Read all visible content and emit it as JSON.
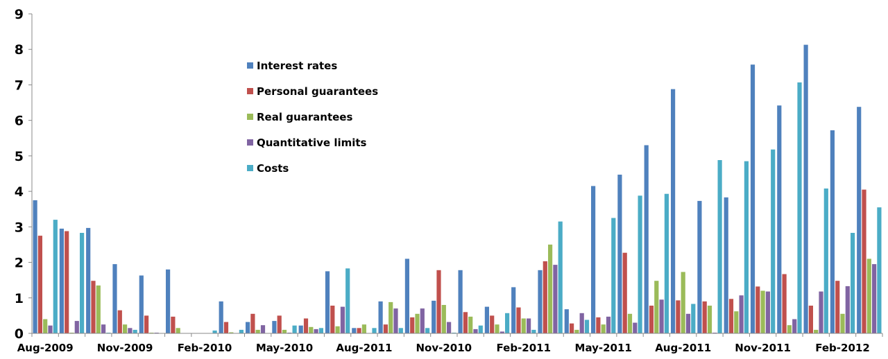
{
  "chart_data": {
    "type": "bar",
    "title": "",
    "xlabel": "",
    "ylabel": "",
    "ylim": [
      0,
      9
    ],
    "yticks": [
      0,
      1,
      2,
      3,
      4,
      5,
      6,
      7,
      8,
      9
    ],
    "grid": false,
    "legend_position": "top-center",
    "x_tick_labels": [
      "Aug-2009",
      "Nov-2009",
      "Feb-2010",
      "May-2010",
      "Aug-2011",
      "Nov-2010",
      "Feb-2011",
      "May-2011",
      "Aug-2011",
      "Nov-2011",
      "Feb-2012"
    ],
    "x_tick_every": 3,
    "series": [
      {
        "name": "Interest rates",
        "color": "#4F81BD",
        "values": [
          3.75,
          2.95,
          2.97,
          1.95,
          1.63,
          1.8,
          0,
          0.9,
          0.32,
          0.35,
          0.22,
          1.75,
          0.15,
          0.9,
          2.1,
          0.92,
          1.78,
          0.75,
          1.3,
          1.78,
          0.68,
          4.15,
          4.47,
          5.3,
          6.88,
          3.73,
          3.83,
          7.57,
          6.42,
          8.13,
          5.72,
          6.38
        ]
      },
      {
        "name": "Personal guarantees",
        "color": "#C0504D",
        "values": [
          2.75,
          2.88,
          1.48,
          0.65,
          0.5,
          0.47,
          0,
          0.32,
          0.55,
          0.5,
          0.42,
          0.78,
          0.15,
          0.25,
          0.45,
          1.78,
          0.6,
          0.5,
          0.73,
          2.03,
          0.28,
          0.45,
          2.27,
          0.78,
          0.93,
          0.9,
          0.97,
          1.32,
          1.67,
          0.78,
          1.48,
          4.05
        ]
      },
      {
        "name": "Real guarantees",
        "color": "#9BBB59",
        "values": [
          0.4,
          0.02,
          1.35,
          0.25,
          0.02,
          0.15,
          0,
          0.03,
          0.1,
          0.1,
          0.18,
          0.2,
          0.25,
          0.88,
          0.55,
          0.8,
          0.47,
          0.25,
          0.42,
          2.5,
          0.1,
          0.25,
          0.55,
          1.48,
          1.73,
          0.78,
          0.62,
          1.2,
          0.23,
          0.1,
          0.55,
          2.1
        ]
      },
      {
        "name": "Quantitative limits",
        "color": "#8064A2",
        "values": [
          0.22,
          0.35,
          0.25,
          0.15,
          0.02,
          0,
          0,
          0,
          0.23,
          0.02,
          0.12,
          0.75,
          0,
          0.7,
          0.7,
          0.32,
          0.12,
          0.05,
          0.42,
          1.93,
          0.57,
          0.47,
          0.3,
          0.95,
          0.55,
          0.02,
          1.07,
          1.18,
          0.4,
          1.18,
          1.33,
          1.95
        ]
      },
      {
        "name": "Costs",
        "color": "#4BACC6",
        "values": [
          3.2,
          2.83,
          0.02,
          0.1,
          0,
          0,
          0.08,
          0.1,
          0,
          0.22,
          0.15,
          1.83,
          0.15,
          0.15,
          0.15,
          0.02,
          0.22,
          0.57,
          0.1,
          3.15,
          0.38,
          3.25,
          3.88,
          3.93,
          0.83,
          4.88,
          4.85,
          5.18,
          7.07,
          4.08,
          2.83,
          3.55
        ]
      }
    ]
  }
}
